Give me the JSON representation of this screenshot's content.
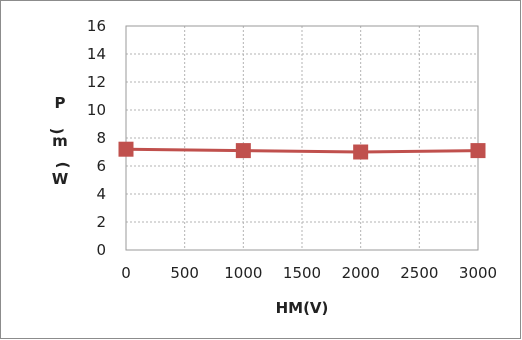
{
  "chart_data": {
    "type": "line",
    "xlabel": "HM(V)",
    "ylabel_chars": [
      "P",
      "m",
      ")",
      "W",
      "("
    ],
    "x": [
      0,
      1000,
      2000,
      3000
    ],
    "series": [
      {
        "values": [
          7.2,
          7.1,
          7.0,
          7.1
        ]
      }
    ],
    "xlim": [
      0,
      3000
    ],
    "ylim": [
      0,
      16
    ],
    "xticks": [
      0,
      500,
      1000,
      1500,
      2000,
      2500,
      3000
    ],
    "yticks": [
      0,
      2,
      4,
      6,
      8,
      10,
      12,
      14,
      16
    ],
    "grid": true,
    "colors": {
      "line": "#c0504d",
      "marker": "#c0504d",
      "grid": "#b3b3b3"
    }
  }
}
